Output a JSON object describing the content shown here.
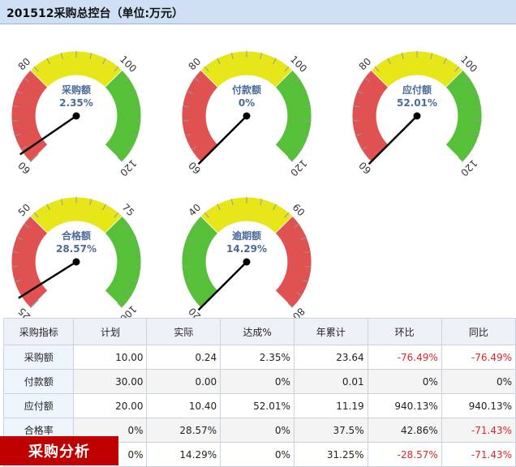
{
  "page": {
    "title": "201512采购总控台（单位:万元）"
  },
  "gauges": [
    {
      "id": "purchase",
      "label": "采购额",
      "value_text": "2.35%",
      "min": 60,
      "max": 120,
      "needle": 62.35,
      "ticks": [
        "60",
        "80",
        "100",
        "120"
      ],
      "bands": [
        {
          "from": 60,
          "to": 80,
          "color": "#e05252"
        },
        {
          "from": 80,
          "to": 100,
          "color": "#e6e619"
        },
        {
          "from": 100,
          "to": 120,
          "color": "#55c038"
        }
      ]
    },
    {
      "id": "payment",
      "label": "付款额",
      "value_text": "0%",
      "min": 60,
      "max": 120,
      "needle": 60,
      "ticks": [
        "60",
        "80",
        "100",
        "120"
      ],
      "bands": [
        {
          "from": 60,
          "to": 80,
          "color": "#e05252"
        },
        {
          "from": 80,
          "to": 100,
          "color": "#e6e619"
        },
        {
          "from": 100,
          "to": 120,
          "color": "#55c038"
        }
      ]
    },
    {
      "id": "payable",
      "label": "应付额",
      "value_text": "52.01%",
      "min": 60,
      "max": 120,
      "needle": 60,
      "ticks": [
        "60",
        "80",
        "100",
        "120"
      ],
      "bands": [
        {
          "from": 60,
          "to": 80,
          "color": "#e05252"
        },
        {
          "from": 80,
          "to": 100,
          "color": "#e6e619"
        },
        {
          "from": 100,
          "to": 120,
          "color": "#55c038"
        }
      ]
    },
    {
      "id": "qualified",
      "label": "合格额",
      "value_text": "28.57%",
      "min": 25,
      "max": 100,
      "needle": 28.57,
      "ticks": [
        "25",
        "50",
        "75",
        "100"
      ],
      "bands": [
        {
          "from": 25,
          "to": 50,
          "color": "#e05252"
        },
        {
          "from": 50,
          "to": 75,
          "color": "#e6e619"
        },
        {
          "from": 75,
          "to": 100,
          "color": "#55c038"
        }
      ]
    },
    {
      "id": "overdue",
      "label": "逾期额",
      "value_text": "14.29%",
      "min": 20,
      "max": 80,
      "needle": 20,
      "ticks": [
        "20",
        "40",
        "60",
        "80"
      ],
      "bands": [
        {
          "from": 20,
          "to": 40,
          "color": "#55c038"
        },
        {
          "from": 40,
          "to": 60,
          "color": "#e6e619"
        },
        {
          "from": 60,
          "to": 80,
          "color": "#e05252"
        }
      ]
    }
  ],
  "table": {
    "headers": [
      "采购指标",
      "计划",
      "实际",
      "达成%",
      "年累计",
      "环比",
      "同比"
    ],
    "rows": [
      [
        "采购额",
        "10.00",
        "0.24",
        "2.35%",
        "23.64",
        "-76.49%",
        "-76.49%"
      ],
      [
        "付款额",
        "30.00",
        "0.00",
        "0%",
        "0.01",
        "0%",
        "0%"
      ],
      [
        "应付额",
        "20.00",
        "10.40",
        "52.01%",
        "11.19",
        "940.13%",
        "940.13%"
      ],
      [
        "合格率",
        "0%",
        "28.57%",
        "0%",
        "37.5%",
        "42.86%",
        "-71.43%"
      ],
      [
        "",
        "0%",
        "14.29%",
        "0%",
        "31.25%",
        "-28.57%",
        "-71.43%"
      ]
    ]
  },
  "banner": {
    "label": "采购分析"
  },
  "colors": {
    "header_bg": "#cfe0f5",
    "negative": "#e0242b",
    "banner_bg": "#c00000"
  }
}
